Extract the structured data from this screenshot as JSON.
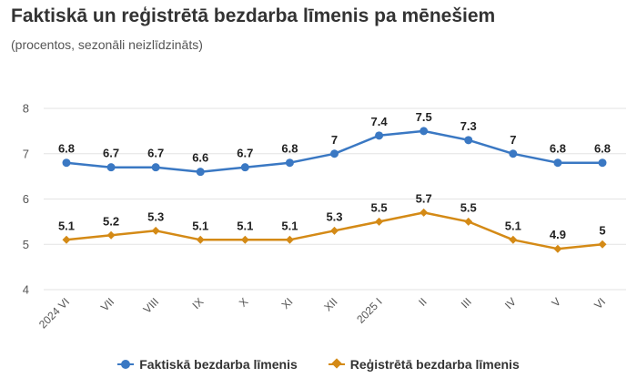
{
  "header": {
    "title": "Faktiskā un reģistrētā bezdarba līmenis pa mēnešiem",
    "subtitle": "(procentos, sezonāli neizlīdzināts)"
  },
  "chart_data": {
    "type": "line",
    "title": "Faktiskā un reģistrētā bezdarba līmenis pa mēnešiem",
    "subtitle": "(procentos, sezonāli neizlīdzināts)",
    "categories": [
      "2024 VI",
      "VII",
      "VIII",
      "IX",
      "X",
      "XI",
      "XII",
      "2025 I",
      "II",
      "III",
      "IV",
      "V",
      "VI"
    ],
    "ylim": [
      4,
      8
    ],
    "yticks": [
      4,
      5,
      6,
      7,
      8
    ],
    "grid": true,
    "legend_position": "bottom",
    "series": [
      {
        "name": "Faktiskā bezdarba līmenis",
        "color": "#3a78c3",
        "marker": "circle",
        "values": [
          6.8,
          6.7,
          6.7,
          6.6,
          6.7,
          6.8,
          7,
          7.4,
          7.5,
          7.3,
          7,
          6.8,
          6.8
        ]
      },
      {
        "name": "Reģistrētā bezdarba līmenis",
        "color": "#d48a16",
        "marker": "diamond",
        "values": [
          5.1,
          5.2,
          5.3,
          5.1,
          5.1,
          5.1,
          5.3,
          5.5,
          5.7,
          5.5,
          5.1,
          4.9,
          5
        ]
      }
    ]
  }
}
